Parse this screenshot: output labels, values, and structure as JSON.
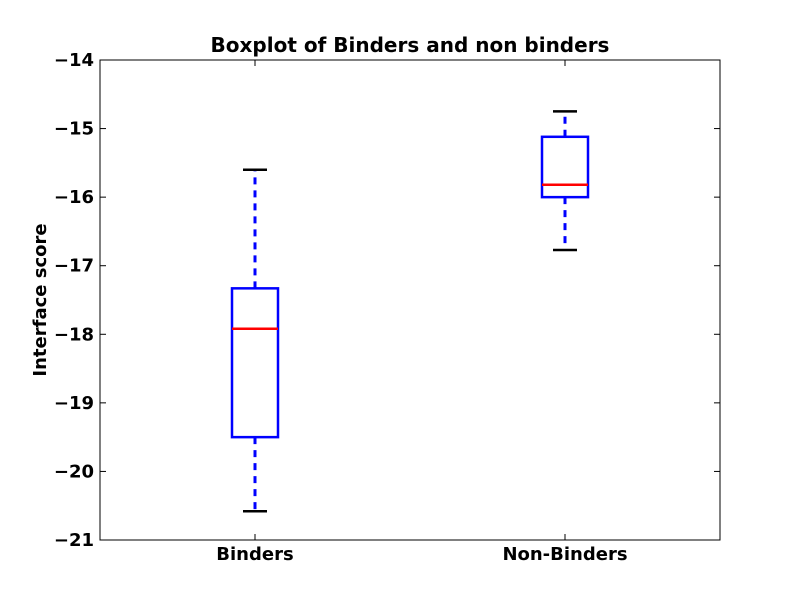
{
  "chart_data": {
    "type": "boxplot",
    "title": "Boxplot of Binders and non binders",
    "xlabel": "",
    "ylabel": "Interface score",
    "ylim": [
      -21,
      -14
    ],
    "yticks": [
      -14,
      -15,
      -16,
      -17,
      -18,
      -19,
      -20,
      -21
    ],
    "ytick_labels": [
      "−14",
      "−15",
      "−16",
      "−17",
      "−18",
      "−19",
      "−20",
      "−21"
    ],
    "categories": [
      "Binders",
      "Non-Binders"
    ],
    "boxes": [
      {
        "category": "Binders",
        "whisker_low": -20.58,
        "q1": -19.5,
        "median": -17.92,
        "q3": -17.33,
        "whisker_high": -15.6
      },
      {
        "category": "Non-Binders",
        "whisker_low": -16.77,
        "q1": -16.0,
        "median": -15.82,
        "q3": -15.12,
        "whisker_high": -14.75
      }
    ],
    "colors": {
      "box": "#0000ff",
      "median": "#ff0000",
      "cap": "#000000",
      "frame": "#000000"
    },
    "grid": false
  }
}
